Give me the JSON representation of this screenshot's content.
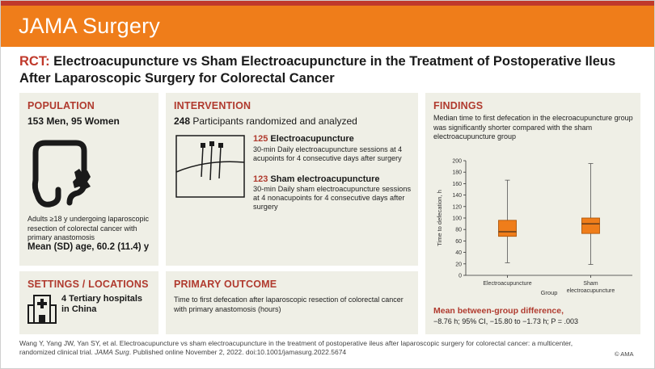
{
  "banner": {
    "title": "JAMA Surgery"
  },
  "headline": {
    "prefix": "RCT:",
    "text": "Electroacupuncture vs Sham Electroacupuncture in the Treatment of Postoperative Ileus After Laparoscopic Surgery for Colorectal Cancer"
  },
  "population": {
    "heading": "POPULATION",
    "counts": "153 Men, 95 Women",
    "description": "Adults ≥18 y undergoing laparoscopic resection of colorectal cancer with primary anastomosis",
    "age": "Mean (SD) age, 60.2 (11.4) y",
    "icon": "colon-icon"
  },
  "intervention": {
    "heading": "INTERVENTION",
    "count_number": "248",
    "count_text": "Participants randomized and analyzed",
    "icon": "acupuncture-needles-icon",
    "arms": [
      {
        "number": "125",
        "title": "Electroacupuncture",
        "description": "30-min Daily electroacupuncture sessions at 4 acupoints for 4 consecutive days after surgery"
      },
      {
        "number": "123",
        "title": "Sham electroacupuncture",
        "description": "30-min Daily sham electroacupuncture sessions at 4 nonacupoints for 4 consecutive days after surgery"
      }
    ]
  },
  "settings": {
    "heading": "SETTINGS / LOCATIONS",
    "text": "4 Tertiary hospitals in China",
    "icon": "hospital-icon"
  },
  "primary_outcome": {
    "heading": "PRIMARY OUTCOME",
    "text": "Time to first defecation after laparoscopic resection of colorectal cancer with primary anastomosis (hours)"
  },
  "findings": {
    "heading": "FINDINGS",
    "text": "Median time to first defecation in the elecroacupuncture group was significantly shorter compared with the sham electroacupuncture group",
    "difference_title": "Mean between-group difference,",
    "difference_value": "−8.76 h; 95% CI, −15.80 to −1.73 h; P = .003"
  },
  "chart_data": {
    "type": "boxplot",
    "xlabel": "Group",
    "ylabel": "Time to defecation, h",
    "ylim": [
      0,
      200
    ],
    "yticks": [
      0,
      20,
      40,
      60,
      80,
      100,
      120,
      140,
      160,
      180,
      200
    ],
    "grid": false,
    "categories": [
      "Electroacupuncture",
      "Sham electroacupuncture"
    ],
    "category_lines": [
      [
        "Electroacupuncture"
      ],
      [
        "Sham",
        "electroacupuncture"
      ]
    ],
    "series": [
      {
        "name": "Electroacupuncture",
        "min": 22,
        "q1": 68,
        "median": 76,
        "q3": 96,
        "max": 166
      },
      {
        "name": "Sham electroacupuncture",
        "min": 19,
        "q1": 73,
        "median": 90,
        "q3": 100,
        "max": 195
      }
    ],
    "box_color": "#ef7d1a"
  },
  "citation": {
    "text_before": "Wang Y, Yang JW, Yan SY, et al. Electroacupuncture vs sham electroacupuncture in the treatment of postoperative ileus after laparoscopic surgery for colorectal cancer: a multicenter, randomized clinical trial.",
    "journal": "JAMA Surg",
    "text_after": ". Published online November 2, 2022. doi:10.1001/jamasurg.2022.5674",
    "copyright": "© AMA"
  }
}
